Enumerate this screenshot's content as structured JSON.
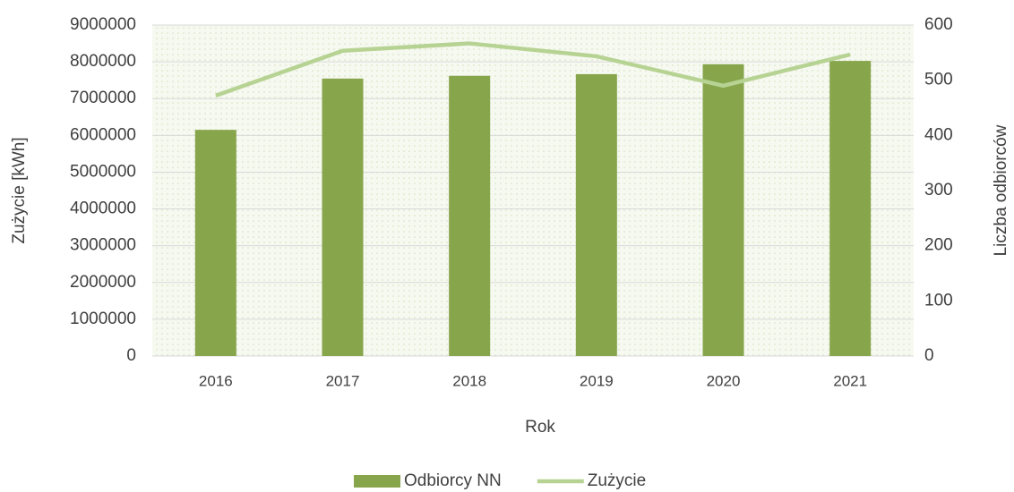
{
  "chart_data": {
    "type": "bar_line",
    "categories": [
      "2016",
      "2017",
      "2018",
      "2019",
      "2020",
      "2021"
    ],
    "series": [
      {
        "name": "Odbiorcy NN",
        "type": "bar",
        "axis": "y2",
        "color": "#87a54b",
        "values": [
          410,
          503,
          508,
          511,
          529,
          535
        ]
      },
      {
        "name": "Zużycie",
        "type": "line",
        "axis": "y",
        "color": "#b7d393",
        "values": [
          7080000,
          8300000,
          8500000,
          8150000,
          7350000,
          8200000
        ]
      }
    ],
    "x_label": "Rok",
    "y_label": "Zużycie [kWh]",
    "y2_label": "Liczba odbiorców",
    "ylim": [
      0,
      9000000
    ],
    "yticks": [
      0,
      1000000,
      2000000,
      3000000,
      4000000,
      5000000,
      6000000,
      7000000,
      8000000,
      9000000
    ],
    "y2lim": [
      0,
      600
    ],
    "y2ticks": [
      0,
      100,
      200,
      300,
      400,
      500,
      600
    ],
    "grid": true,
    "legend": "bottom"
  }
}
